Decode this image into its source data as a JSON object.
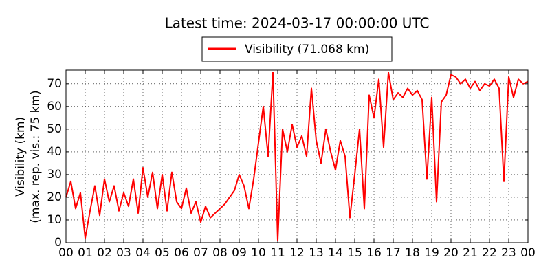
{
  "chart_data": {
    "type": "line",
    "title": "Latest time: 2024-03-17 00:00:00 UTC",
    "y_label": [
      "Visibility (km)",
      "(max. rep. vis.: 75 km)"
    ],
    "x": [
      0,
      0.25,
      0.5,
      0.75,
      1,
      1.25,
      1.5,
      1.75,
      2,
      2.25,
      2.5,
      2.75,
      3,
      3.25,
      3.5,
      3.75,
      4,
      4.25,
      4.5,
      4.75,
      5,
      5.25,
      5.5,
      5.75,
      6,
      6.25,
      6.5,
      6.75,
      7,
      7.25,
      7.5,
      7.75,
      8,
      8.25,
      8.5,
      8.75,
      9,
      9.25,
      9.5,
      9.75,
      10,
      10.25,
      10.5,
      10.75,
      11,
      11.25,
      11.5,
      11.75,
      12,
      12.25,
      12.5,
      12.75,
      13,
      13.25,
      13.5,
      13.75,
      14,
      14.25,
      14.5,
      14.75,
      15,
      15.25,
      15.5,
      15.75,
      16,
      16.25,
      16.5,
      16.75,
      17,
      17.25,
      17.5,
      17.75,
      18,
      18.25,
      18.5,
      18.75,
      19,
      19.25,
      19.5,
      19.75,
      20,
      20.25,
      20.5,
      20.75,
      21,
      21.25,
      21.5,
      21.75,
      22,
      22.25,
      22.5,
      22.75,
      23,
      23.25,
      23.5,
      23.75,
      24
    ],
    "series": [
      {
        "name": "Visibility (71.068 km)",
        "color": "#ff0000",
        "values": [
          20,
          27,
          15,
          22,
          2,
          14,
          25,
          12,
          28,
          18,
          25,
          14,
          22,
          16,
          28,
          13,
          33,
          20,
          31,
          15,
          30,
          14,
          31,
          18,
          15,
          24,
          13,
          18,
          9,
          16,
          11,
          13,
          15,
          17,
          20,
          23,
          30,
          25,
          15,
          28,
          44,
          60,
          38,
          75,
          1,
          50,
          40,
          52,
          42,
          47,
          38,
          68,
          45,
          35,
          50,
          40,
          32,
          45,
          38,
          11,
          30,
          50,
          15,
          65,
          55,
          72,
          42,
          75,
          63,
          66,
          64,
          68,
          65,
          67,
          63,
          28,
          64,
          18,
          62,
          65,
          74,
          73,
          70,
          72,
          68,
          71,
          67,
          70,
          69,
          72,
          68,
          27,
          73,
          64,
          72,
          70,
          71
        ]
      }
    ],
    "xlim": [
      0,
      24
    ],
    "ylim": [
      0,
      76
    ],
    "xticks": [
      {
        "value": 0,
        "label": "00"
      },
      {
        "value": 1,
        "label": "01"
      },
      {
        "value": 2,
        "label": "02"
      },
      {
        "value": 3,
        "label": "03"
      },
      {
        "value": 4,
        "label": "04"
      },
      {
        "value": 5,
        "label": "05"
      },
      {
        "value": 6,
        "label": "06"
      },
      {
        "value": 7,
        "label": "07"
      },
      {
        "value": 8,
        "label": "08"
      },
      {
        "value": 9,
        "label": "09"
      },
      {
        "value": 10,
        "label": "10"
      },
      {
        "value": 11,
        "label": "11"
      },
      {
        "value": 12,
        "label": "12"
      },
      {
        "value": 13,
        "label": "13"
      },
      {
        "value": 14,
        "label": "14"
      },
      {
        "value": 15,
        "label": "15"
      },
      {
        "value": 16,
        "label": "16"
      },
      {
        "value": 17,
        "label": "17"
      },
      {
        "value": 18,
        "label": "18"
      },
      {
        "value": 19,
        "label": "19"
      },
      {
        "value": 20,
        "label": "20"
      },
      {
        "value": 21,
        "label": "21"
      },
      {
        "value": 22,
        "label": "22"
      },
      {
        "value": 23,
        "label": "23"
      },
      {
        "value": 24,
        "label": "00"
      }
    ],
    "yticks": [
      0,
      10,
      20,
      30,
      40,
      50,
      60,
      70
    ],
    "grid": true
  }
}
